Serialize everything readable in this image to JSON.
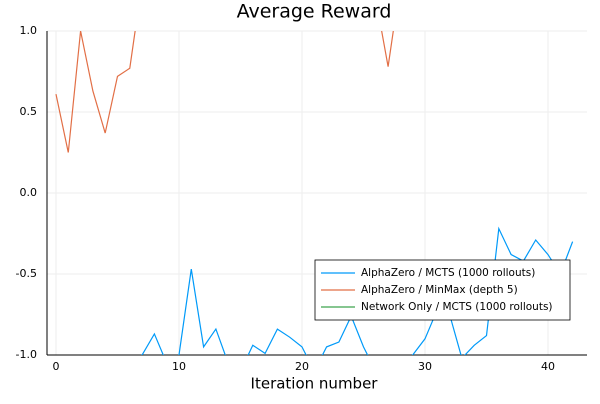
{
  "chart_data": {
    "type": "line",
    "title": "Average Reward",
    "x_label": "Iteration number",
    "x": [
      0,
      1,
      2,
      3,
      4,
      5,
      6,
      7,
      8,
      9,
      10,
      11,
      12,
      13,
      14,
      15,
      16,
      17,
      18,
      19,
      20,
      21,
      22,
      23,
      24,
      25,
      26,
      27,
      28,
      29,
      30,
      31,
      32,
      33,
      34,
      35,
      36,
      37,
      38,
      39,
      40,
      41,
      42
    ],
    "series": [
      {
        "name": "AlphaZero / MCTS (1000 rollouts)",
        "color": "#009af9",
        "values": [
          -1.2,
          -1.2,
          -1.2,
          -1.2,
          -1.2,
          -1.2,
          -1.2,
          -1.0,
          -0.87,
          -1.05,
          -1.0,
          -0.47,
          -0.95,
          -0.84,
          -1.05,
          -1.1,
          -0.94,
          -0.99,
          -0.84,
          -0.89,
          -0.95,
          -1.1,
          -0.95,
          -0.92,
          -0.76,
          -0.95,
          -1.1,
          -1.1,
          -1.1,
          -1.0,
          -0.9,
          -0.72,
          -0.75,
          -1.02,
          -0.94,
          -0.88,
          -0.22,
          -0.38,
          -0.42,
          -0.29,
          -0.38,
          -0.5,
          -0.3
        ]
      },
      {
        "name": "AlphaZero / MinMax (depth 5)",
        "color": "#e26f46",
        "values": [
          0.61,
          0.25,
          1.0,
          0.63,
          0.37,
          0.72,
          0.77,
          1.3,
          null,
          null,
          null,
          null,
          null,
          null,
          null,
          null,
          null,
          null,
          null,
          null,
          null,
          null,
          null,
          null,
          null,
          null,
          1.2,
          0.78,
          1.3,
          null,
          null,
          null,
          null,
          null,
          null,
          null,
          null,
          null,
          null,
          null,
          null,
          null,
          null
        ]
      },
      {
        "name": "Network Only / MCTS (1000 rollouts)",
        "color": "#3da44d",
        "values": [
          null,
          null,
          null,
          null,
          null,
          null,
          null,
          null,
          null,
          null,
          null,
          null,
          null,
          null,
          null,
          null,
          null,
          null,
          null,
          null,
          null,
          null,
          null,
          null,
          null,
          null,
          null,
          null,
          null,
          null,
          null,
          null,
          null,
          null,
          null,
          null,
          null,
          null,
          null,
          null,
          null,
          null,
          null
        ]
      }
    ],
    "xlim": [
      -0.73,
      43.17
    ],
    "ylim": [
      -1,
      1
    ],
    "xticks": [
      0,
      10,
      20,
      30,
      40
    ],
    "yticks": [
      {
        "value": -1,
        "label": "-1.0"
      },
      {
        "value": -0.5,
        "label": "-0.5"
      },
      {
        "value": 0,
        "label": "0.0"
      },
      {
        "value": 0.5,
        "label": "0.5"
      },
      {
        "value": 1,
        "label": "1.0"
      }
    ],
    "grid": true,
    "legend": "lower right"
  }
}
